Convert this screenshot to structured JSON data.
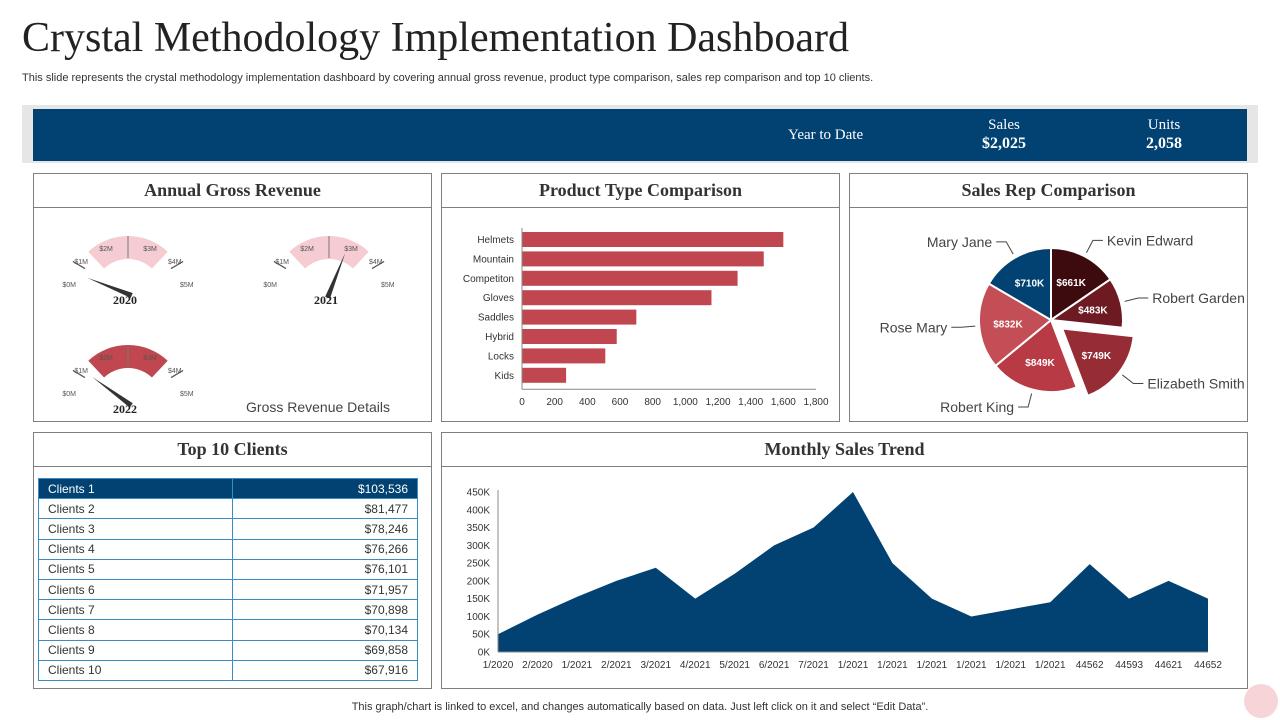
{
  "page": {
    "title": "Crystal Methodology Implementation Dashboard",
    "subtitle": "This slide represents the crystal methodology implementation dashboard by covering annual gross revenue, product type  comparison, sales rep comparison and top 10 clients.",
    "footer": "This graph/chart is linked to excel,  and changes automatically based on data. Just left click on it and select “Edit Data”."
  },
  "ytd": {
    "label": "Year to Date",
    "sales_label": "Sales",
    "sales_value": "$2,025",
    "units_label": "Units",
    "units_value": "2,058"
  },
  "panels": {
    "annual": "Annual Gross Revenue",
    "product": "Product Type Comparison",
    "salesrep": "Sales Rep Comparison",
    "clients": "Top 10 Clients",
    "monthly": "Monthly Sales Trend"
  },
  "colors": {
    "navy": "#024273",
    "bar_red": "#c0474f",
    "gauge_pink": "#f5ccd2",
    "gauge_red": "#c0474f"
  },
  "gross_revenue_details": "Gross Revenue Details",
  "chart_data": [
    {
      "type": "gauge",
      "title": "Annual Gross Revenue",
      "scale_labels": [
        "$0M",
        "$1M",
        "$2M",
        "$3M",
        "$4M",
        "$5M"
      ],
      "range": [
        0,
        5
      ],
      "gauges": [
        {
          "year": "2020",
          "value": 0.6,
          "band": "pink"
        },
        {
          "year": "2021",
          "value": 3.1,
          "band": "pink"
        },
        {
          "year": "2022",
          "value": 1.0,
          "band": "red"
        }
      ]
    },
    {
      "type": "bar",
      "title": "Product Type Comparison",
      "orientation": "horizontal",
      "categories": [
        "Helmets",
        "Mountain",
        "Competiton",
        "Gloves",
        "Saddles",
        "Hybrid",
        "Locks",
        "Kids"
      ],
      "values": [
        1600,
        1480,
        1320,
        1160,
        700,
        580,
        510,
        270
      ],
      "xlim": [
        0,
        1800
      ],
      "xticks": [
        "0",
        "200",
        "400",
        "600",
        "800",
        "1,000",
        "1,200",
        "1,400",
        "1,600",
        "1,800"
      ]
    },
    {
      "type": "pie",
      "title": "Sales Rep Comparison",
      "slices": [
        {
          "name": "Kevin Edward",
          "value": 661,
          "label": "$661K",
          "color": "#3d0a0e",
          "explode": false
        },
        {
          "name": "Robert Garden",
          "value": 483,
          "label": "$483K",
          "color": "#6e1a22",
          "explode": false
        },
        {
          "name": "Elizabeth Smith",
          "value": 749,
          "label": "$749K",
          "color": "#962d35",
          "explode": true
        },
        {
          "name": "Robert King",
          "value": 849,
          "label": "$849K",
          "color": "#b83a44",
          "explode": false
        },
        {
          "name": "Rose Mary",
          "value": 832,
          "label": "$832K",
          "color": "#c44e56",
          "explode": false
        },
        {
          "name": "Mary Jane",
          "value": 710,
          "label": "$710K",
          "color": "#024273",
          "explode": false
        }
      ]
    },
    {
      "type": "table",
      "title": "Top 10 Clients",
      "rows": [
        {
          "client": "Clients 1",
          "amount": "$103,536"
        },
        {
          "client": "Clients 2",
          "amount": "$81,477"
        },
        {
          "client": "Clients 3",
          "amount": "$78,246"
        },
        {
          "client": "Clients 4",
          "amount": "$76,266"
        },
        {
          "client": "Clients 5",
          "amount": "$76,101"
        },
        {
          "client": "Clients 6",
          "amount": "$71,957"
        },
        {
          "client": "Clients 7",
          "amount": "$70,898"
        },
        {
          "client": "Clients 8",
          "amount": "$70,134"
        },
        {
          "client": "Clients 9",
          "amount": "$69,858"
        },
        {
          "client": "Clients 10",
          "amount": "$67,916"
        }
      ]
    },
    {
      "type": "area",
      "title": "Monthly Sales Trend",
      "x": [
        "1/2020",
        "2/2020",
        "1/2021",
        "2/2021",
        "3/2021",
        "4/2021",
        "5/2021",
        "6/2021",
        "7/2021",
        "1/2021",
        "1/2021",
        "1/2021",
        "1/2021",
        "1/2021",
        "1/2021",
        "44562",
        "44593",
        "44621",
        "44652"
      ],
      "values": [
        50000,
        105000,
        155000,
        200000,
        237000,
        150000,
        220000,
        300000,
        350000,
        450000,
        250000,
        150000,
        100000,
        120000,
        140000,
        247000,
        150000,
        200000,
        150000
      ],
      "ylim": [
        0,
        450000
      ],
      "yticks": [
        "0K",
        "50K",
        "100K",
        "150K",
        "200K",
        "250K",
        "300K",
        "350K",
        "400K",
        "450K"
      ],
      "color": "#024273"
    }
  ]
}
